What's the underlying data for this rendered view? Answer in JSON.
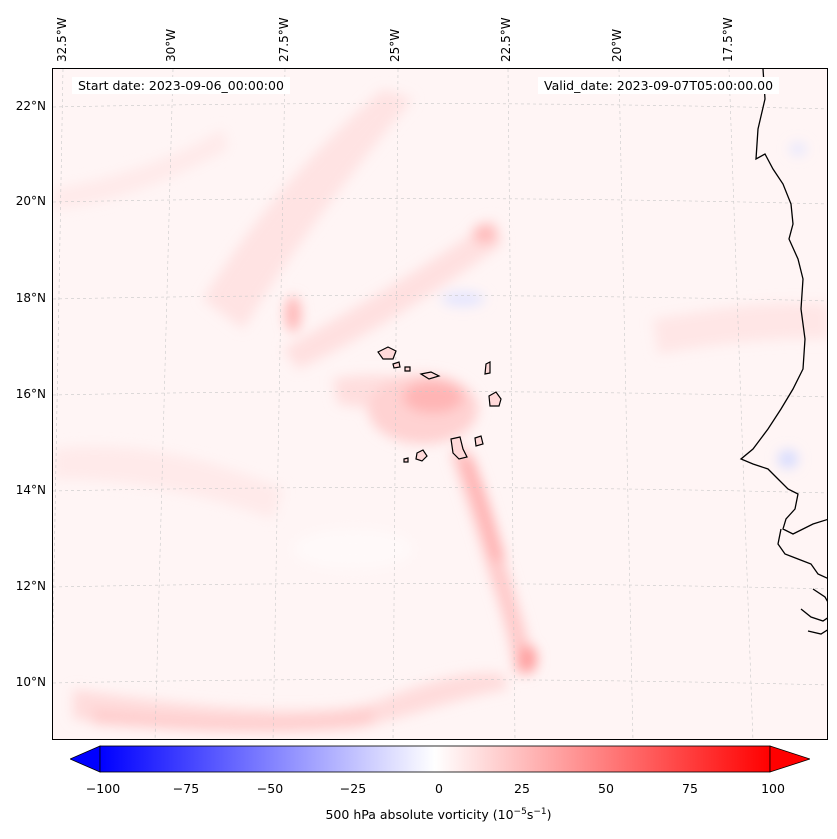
{
  "map": {
    "start_label": "Start date: 2023-09-06_00:00:00",
    "valid_label": "Valid_date: 2023-09-07T05:00:00.00",
    "lon_labels": [
      "32.5°W",
      "30°W",
      "27.5°W",
      "25°W",
      "22.5°W",
      "20°W",
      "17.5°W"
    ],
    "lat_labels": [
      "22°N",
      "20°N",
      "18°N",
      "16°N",
      "14°N",
      "12°N",
      "10°N"
    ],
    "field_name": "500 hPa absolute vorticity"
  },
  "colorbar": {
    "ticks": [
      "−100",
      "−75",
      "−50",
      "−25",
      "0",
      "25",
      "50",
      "75",
      "100"
    ],
    "title_prefix": "500 hPa absolute vorticity (10",
    "title_exp1": "−5",
    "title_mid": "s",
    "title_exp2": "−1",
    "title_suffix": ")",
    "min_color": "#0000ff",
    "mid_color": "#ffffff",
    "max_color": "#ff0000"
  }
}
